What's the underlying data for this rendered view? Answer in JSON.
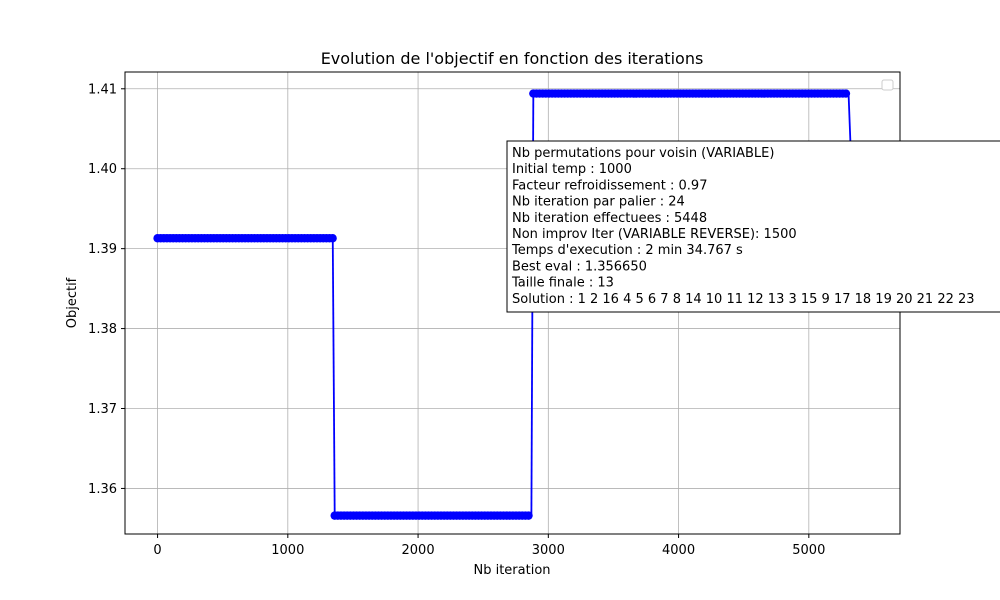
{
  "chart_data": {
    "type": "line",
    "title": "Evolution de l'objectif en fonction des iterations",
    "xlabel": "Nb iteration",
    "ylabel": "Objectif",
    "xlim": [
      -250,
      5700
    ],
    "ylim": [
      1.3543,
      1.4121
    ],
    "xticks": [
      0,
      1000,
      2000,
      3000,
      4000,
      5000
    ],
    "xtick_labels": [
      "0",
      "1000",
      "2000",
      "3000",
      "4000",
      "5000"
    ],
    "yticks": [
      1.36,
      1.37,
      1.38,
      1.39,
      1.4,
      1.41
    ],
    "ytick_labels": [
      "1.36",
      "1.37",
      "1.38",
      "1.39",
      "1.40",
      "1.41"
    ],
    "grid": true,
    "legend": "upper right (empty)",
    "color": "#0000ff",
    "series": [
      {
        "segments": [
          {
            "x_start": 0,
            "x_end": 1345,
            "y": 1.3913
          },
          {
            "x_start": 1360,
            "x_end": 2870,
            "y": 1.3566
          },
          {
            "x_start": 2885,
            "x_end": 5305,
            "y": 1.4094
          }
        ],
        "transitions": [
          {
            "x": [
              1345,
              1360
            ],
            "y": [
              1.3913,
              1.3566
            ]
          },
          {
            "x": [
              2870,
              2885
            ],
            "y": [
              1.3566,
              1.4094
            ]
          },
          {
            "x": [
              5305,
              5320
            ],
            "y": [
              1.4094,
              1.403
            ]
          }
        ],
        "marker_spacing": 24
      }
    ],
    "annotation": [
      "Nb permutations pour voisin (VARIABLE)",
      "Initial temp : 1000",
      "Facteur refroidissement : 0.97",
      "Nb iteration par palier : 24",
      "Nb iteration effectuees : 5448",
      "Non improv Iter (VARIABLE REVERSE): 1500",
      "Temps d'execution : 2 min 34.767 s",
      "Best eval : 1.356650",
      "Taille finale : 13",
      "Solution : 1 2 16 4 5 6 7 8 14 10 11 12 13 3 15 9 17 18 19 20 21 22 23"
    ]
  }
}
